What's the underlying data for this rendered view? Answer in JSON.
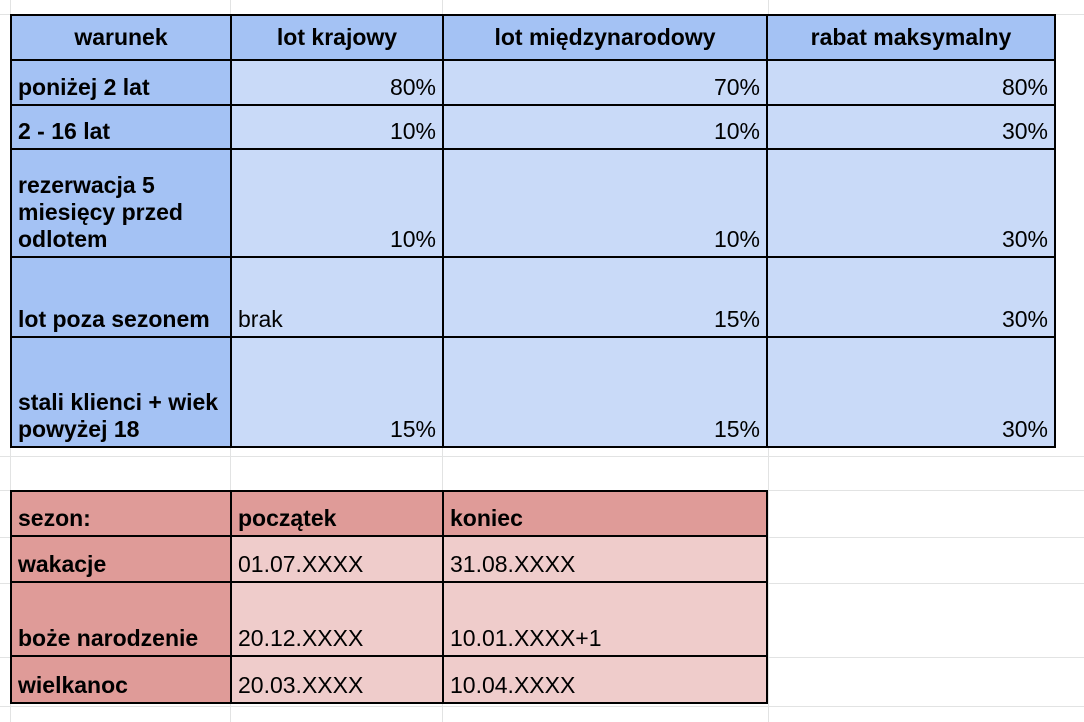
{
  "discounts_table": {
    "headers": [
      "warunek",
      "lot krajowy",
      "lot międzynarodowy",
      "rabat maksymalny"
    ],
    "rows": [
      {
        "label": "poniżej 2 lat",
        "domestic": "80%",
        "international": "70%",
        "max": "80%"
      },
      {
        "label": "2 - 16 lat",
        "domestic": "10%",
        "international": "10%",
        "max": "30%"
      },
      {
        "label": "rezerwacja 5 miesięcy przed odlotem",
        "domestic": "10%",
        "international": "10%",
        "max": "30%"
      },
      {
        "label": "lot poza sezonem",
        "domestic": "brak",
        "international": "15%",
        "max": "30%"
      },
      {
        "label": "stali klienci + wiek powyżej 18",
        "domestic": "15%",
        "international": "15%",
        "max": "30%"
      }
    ]
  },
  "season_table": {
    "headers": [
      "sezon:",
      "początek",
      "koniec"
    ],
    "rows": [
      {
        "label": "wakacje",
        "start": "01.07.XXXX",
        "end": "31.08.XXXX"
      },
      {
        "label": "boże narodzenie",
        "start": "20.12.XXXX",
        "end": "10.01.XXXX+1"
      },
      {
        "label": "wielkanoc",
        "start": "20.03.XXXX",
        "end": "10.04.XXXX"
      }
    ]
  },
  "colors": {
    "blue_header": "#a4c2f4",
    "blue_cell": "#c9daf8",
    "red_header": "#df9b98",
    "red_cell": "#efcccb"
  }
}
